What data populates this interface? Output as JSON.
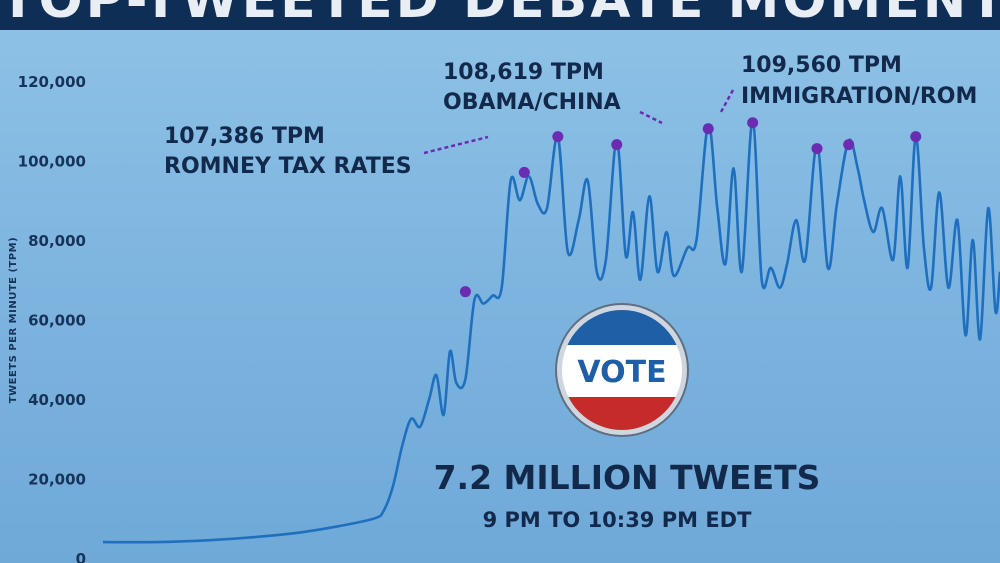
{
  "title": "TOP-TWEETED DEBATE MOMENTS",
  "colors": {
    "line": "#1f6fbf",
    "marker": "#6a2cb0",
    "text": "#13294b",
    "title_bar": "#0f2e56",
    "badge_blue": "#1f5fa5",
    "badge_red": "#c62b2b"
  },
  "chart_data": {
    "type": "line",
    "ylabel": "TWEETS PER MINUTE (TPM)",
    "xlabel": "",
    "ylim": [
      0,
      120000
    ],
    "yticks": [
      0,
      20000,
      40000,
      60000,
      80000,
      100000,
      120000
    ],
    "ytick_labels": [
      "0",
      "20,000",
      "40,000",
      "60,000",
      "80,000",
      "100,000",
      "120,000"
    ],
    "x_range": [
      0,
      99
    ],
    "grid": false,
    "series": [
      {
        "values": [
          [
            0,
            4000
          ],
          [
            6,
            4000
          ],
          [
            12,
            4500
          ],
          [
            18,
            5500
          ],
          [
            22,
            6500
          ],
          [
            26,
            8000
          ],
          [
            30,
            10000
          ],
          [
            31,
            12000
          ],
          [
            32,
            18000
          ],
          [
            33,
            28000
          ],
          [
            34,
            35000
          ],
          [
            35,
            33000
          ],
          [
            36,
            40000
          ],
          [
            36.8,
            46000
          ],
          [
            37.6,
            36000
          ],
          [
            38.3,
            52000
          ],
          [
            39,
            44000
          ],
          [
            40,
            45000
          ],
          [
            41,
            65000
          ],
          [
            42,
            64000
          ],
          [
            43,
            66000
          ],
          [
            44,
            68000
          ],
          [
            45,
            95000
          ],
          [
            46,
            90000
          ],
          [
            47,
            96000
          ],
          [
            48,
            89000
          ],
          [
            49,
            88000
          ],
          [
            50.2,
            106000
          ],
          [
            51.3,
            77000
          ],
          [
            52.5,
            85000
          ],
          [
            53.5,
            95000
          ],
          [
            54.5,
            72000
          ],
          [
            55.5,
            75000
          ],
          [
            56.7,
            105000
          ],
          [
            57.7,
            76000
          ],
          [
            58.5,
            87000
          ],
          [
            59.3,
            70000
          ],
          [
            60.3,
            91000
          ],
          [
            61.2,
            72000
          ],
          [
            62.2,
            82000
          ],
          [
            63,
            71000
          ],
          [
            64.5,
            78000
          ],
          [
            65.5,
            80000
          ],
          [
            66.8,
            109000
          ],
          [
            67.8,
            88000
          ],
          [
            68.7,
            74000
          ],
          [
            69.6,
            98000
          ],
          [
            70.5,
            72000
          ],
          [
            71.7,
            110000
          ],
          [
            72.7,
            70000
          ],
          [
            73.7,
            73000
          ],
          [
            74.7,
            68000
          ],
          [
            75.5,
            74000
          ],
          [
            76.5,
            85000
          ],
          [
            77.5,
            75000
          ],
          [
            78.8,
            104000
          ],
          [
            80,
            73000
          ],
          [
            81,
            89000
          ],
          [
            82.3,
            105000
          ],
          [
            83.3,
            98000
          ],
          [
            84,
            90000
          ],
          [
            85,
            82000
          ],
          [
            86,
            88000
          ],
          [
            87.2,
            75000
          ],
          [
            88,
            96000
          ],
          [
            88.8,
            73000
          ],
          [
            89.7,
            106000
          ],
          [
            90.6,
            78000
          ],
          [
            91.4,
            68000
          ],
          [
            92.3,
            92000
          ],
          [
            93.3,
            68000
          ],
          [
            94.3,
            85000
          ],
          [
            95.2,
            56000
          ],
          [
            96,
            80000
          ],
          [
            96.8,
            55000
          ],
          [
            97.7,
            88000
          ],
          [
            98.5,
            62000
          ],
          [
            99,
            72000
          ]
        ]
      }
    ],
    "markers": [
      {
        "x": 40,
        "y": 67000
      },
      {
        "x": 46.5,
        "y": 97000
      },
      {
        "x": 50.2,
        "y": 106000
      },
      {
        "x": 56.7,
        "y": 104000
      },
      {
        "x": 66.8,
        "y": 108000
      },
      {
        "x": 71.7,
        "y": 109500
      },
      {
        "x": 78.8,
        "y": 103000
      },
      {
        "x": 82.3,
        "y": 104000
      },
      {
        "x": 89.7,
        "y": 106000
      }
    ],
    "annotations": [
      {
        "line1": "107,386 TPM",
        "line2": "ROMNEY TAX RATES"
      },
      {
        "line1": "108,619 TPM",
        "line2": "OBAMA/CHINA"
      },
      {
        "line1": "109,560 TPM",
        "line2": "IMMIGRATION/ROM"
      }
    ]
  },
  "badge": {
    "text": "VOTE"
  },
  "summary": {
    "headline": "7.2 MILLION TWEETS",
    "subline": "9 PM TO 10:39 PM EDT"
  }
}
